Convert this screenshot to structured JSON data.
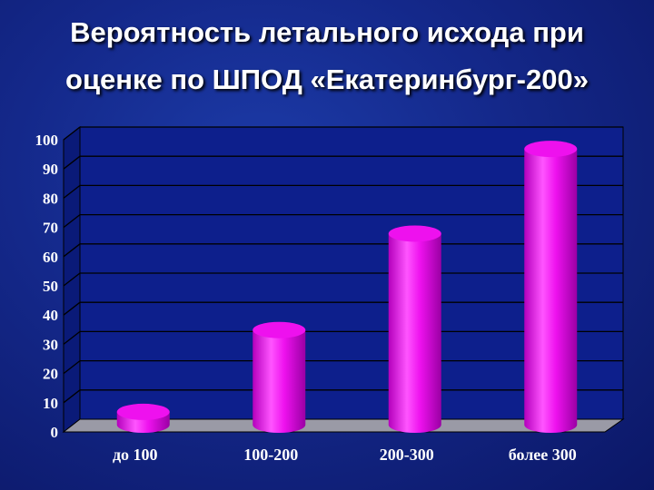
{
  "title_line1": "Вероятность летального исхода при",
  "title_line2": "оценке по ШПОД «Екатеринбург-200»",
  "chart_data": {
    "type": "bar",
    "style": "3d-cylinder",
    "categories": [
      "до 100",
      "100-200",
      "200-300",
      "более 300"
    ],
    "values": [
      5,
      33,
      66,
      95
    ],
    "ylim": [
      0,
      100
    ],
    "yticks": [
      0,
      10,
      20,
      30,
      40,
      50,
      60,
      70,
      80,
      90,
      100
    ],
    "grid": true,
    "legend": "none",
    "colors": {
      "bar": "#ee11ee",
      "bar_dark": "#a000a8",
      "bar_light": "#ff7cff",
      "wall": "#0d1f8c",
      "grid": "#000000",
      "floor": "#9a9aa6",
      "text": "#ffffff"
    }
  }
}
